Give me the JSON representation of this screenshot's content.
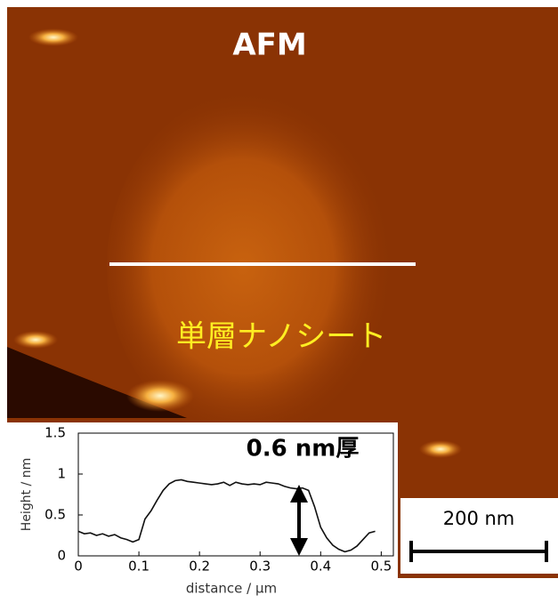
{
  "image": {
    "title": "AFM",
    "label": "単層ナノシート",
    "scale_bar": "200 nm"
  },
  "chart_data": {
    "type": "line",
    "annotation": "0.6 nm厚",
    "xlabel": "distance / μm",
    "ylabel": "Height / nm",
    "x": [
      0,
      0.01,
      0.02,
      0.03,
      0.04,
      0.05,
      0.06,
      0.07,
      0.08,
      0.09,
      0.1,
      0.11,
      0.12,
      0.13,
      0.14,
      0.15,
      0.16,
      0.17,
      0.18,
      0.19,
      0.2,
      0.21,
      0.22,
      0.23,
      0.24,
      0.25,
      0.26,
      0.27,
      0.28,
      0.29,
      0.3,
      0.31,
      0.32,
      0.33,
      0.34,
      0.35,
      0.36,
      0.37,
      0.38,
      0.39,
      0.4,
      0.41,
      0.42,
      0.43,
      0.44,
      0.45,
      0.46,
      0.47,
      0.48,
      0.49
    ],
    "series": [
      {
        "color": "#111111",
        "values": [
          0.3,
          0.27,
          0.28,
          0.25,
          0.27,
          0.24,
          0.26,
          0.22,
          0.2,
          0.17,
          0.2,
          0.45,
          0.55,
          0.68,
          0.8,
          0.88,
          0.92,
          0.93,
          0.91,
          0.9,
          0.89,
          0.88,
          0.87,
          0.88,
          0.9,
          0.86,
          0.9,
          0.88,
          0.87,
          0.88,
          0.87,
          0.9,
          0.89,
          0.88,
          0.85,
          0.83,
          0.82,
          0.83,
          0.8,
          0.6,
          0.35,
          0.22,
          0.13,
          0.08,
          0.05,
          0.07,
          0.12,
          0.2,
          0.28,
          0.3
        ]
      }
    ],
    "xlim": [
      0,
      0.52
    ],
    "ylim": [
      0,
      1.5
    ],
    "xticks": [
      0,
      0.1,
      0.2,
      0.3,
      0.4,
      0.5
    ],
    "yticks": [
      0,
      0.5,
      1,
      1.5
    ]
  }
}
